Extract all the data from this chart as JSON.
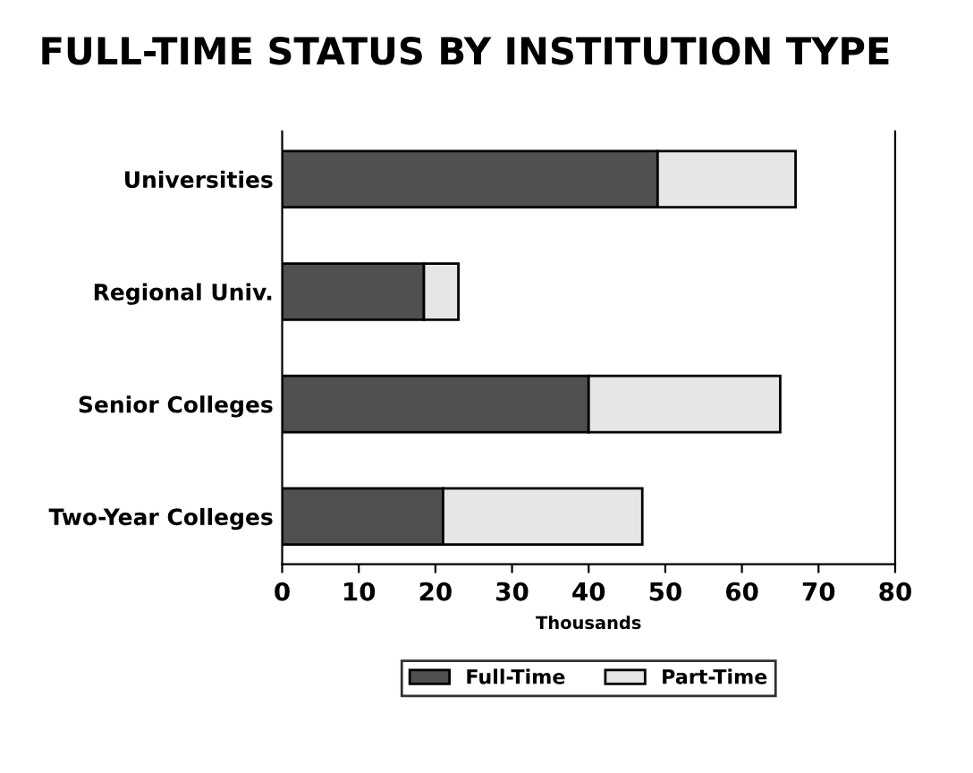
{
  "chart_data": {
    "type": "bar",
    "orientation": "horizontal",
    "stacked": true,
    "title": "FULL-TIME STATUS BY INSTITUTION TYPE",
    "xlabel": "Thousands",
    "categories": [
      "Universities",
      "Regional Univ.",
      "Senior Colleges",
      "Two-Year Colleges"
    ],
    "series": [
      {
        "name": "Full-Time",
        "color": "#505050",
        "values": [
          49,
          18.5,
          40,
          21
        ]
      },
      {
        "name": "Part-Time",
        "color": "#e6e6e6",
        "values": [
          18,
          4.5,
          25,
          26
        ]
      }
    ],
    "xlim": [
      0,
      80
    ],
    "xticks": [
      0,
      10,
      20,
      30,
      40,
      50,
      60,
      70,
      80
    ],
    "grid": false,
    "legend": "bottom"
  }
}
